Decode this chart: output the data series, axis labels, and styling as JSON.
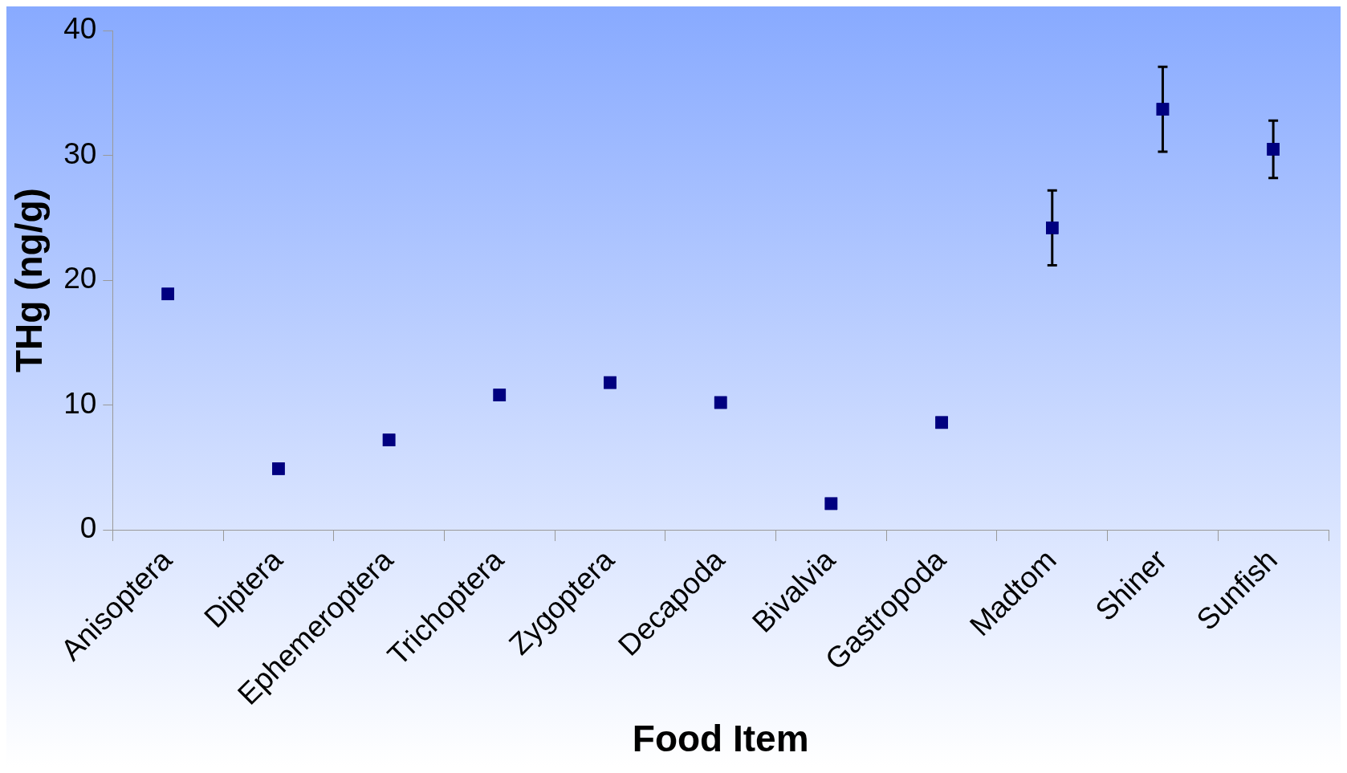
{
  "chart_data": {
    "type": "scatter",
    "xlabel": "Food Item",
    "ylabel": "THg (ng/g)",
    "categories": [
      "Anisoptera",
      "Diptera",
      "Ephemeroptera",
      "Trichoptera",
      "Zygoptera",
      "Decapoda",
      "Bivalvia",
      "Gastropoda",
      "Madtom",
      "Shiner",
      "Sunfish"
    ],
    "values": [
      18.9,
      4.9,
      7.2,
      10.8,
      11.8,
      10.2,
      2.1,
      8.6,
      24.2,
      33.7,
      30.5
    ],
    "errors": [
      null,
      null,
      null,
      null,
      null,
      null,
      null,
      null,
      3.0,
      3.4,
      2.3
    ],
    "color": "#000080",
    "marker": "square",
    "grid": false,
    "legend": false,
    "ylim": [
      0,
      40
    ],
    "yticks": [
      0,
      10,
      20,
      30,
      40
    ]
  }
}
